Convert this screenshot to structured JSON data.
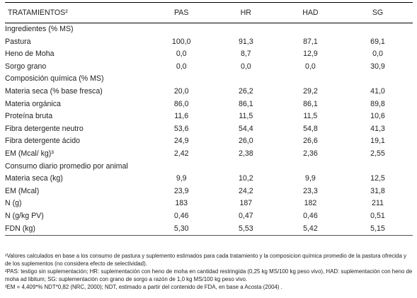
{
  "header": {
    "c0": "TRATAMIENTOS²",
    "c1": "PAS",
    "c2": "HR",
    "c3": "HAD",
    "c4": "SG"
  },
  "rows": [
    {
      "label": "Ingredientes (% MS)",
      "v": [
        "",
        "",
        "",
        ""
      ]
    },
    {
      "label": "Pastura",
      "v": [
        "100,0",
        "91,3",
        "87,1",
        "69,1"
      ]
    },
    {
      "label": "Heno de Moha",
      "v": [
        "0,0",
        "8,7",
        "12,9",
        "0,0"
      ]
    },
    {
      "label": "Sorgo grano",
      "v": [
        "0,0",
        "0,0",
        "0,0",
        "30,9"
      ]
    },
    {
      "label": "Composición química (% MS)",
      "v": [
        "",
        "",
        "",
        ""
      ]
    },
    {
      "label": "Materia seca (% base fresca)",
      "v": [
        "20,0",
        "26,2",
        "29,2",
        "41,0"
      ]
    },
    {
      "label": "Materia orgánica",
      "v": [
        "86,0",
        "86,1",
        "86,1",
        "89,8"
      ]
    },
    {
      "label": "Proteína bruta",
      "v": [
        "11,6",
        "11,5",
        "11,5",
        "10,6"
      ]
    },
    {
      "label": "Fibra detergente neutro",
      "v": [
        "53,6",
        "54,4",
        "54,8",
        "41,3"
      ]
    },
    {
      "label": "Fibra detergente ácido",
      "v": [
        "24,9",
        "26,0",
        "26,6",
        "19,1"
      ]
    },
    {
      "label": "EM (Mcal/ kg)³",
      "v": [
        "2,42",
        "2,38",
        "2,36",
        "2,55"
      ]
    },
    {
      "label": "Consumo diario promedio por animal",
      "v": [
        "",
        "",
        "",
        ""
      ]
    },
    {
      "label": "Materia seca (kg)",
      "v": [
        "9,9",
        "10,2",
        "9,9",
        "12,5"
      ]
    },
    {
      "label": "EM (Mcal)",
      "v": [
        "23,9",
        "24,2",
        "23,3",
        "31,8"
      ]
    },
    {
      "label": "N (g)",
      "v": [
        "183",
        "187",
        "182",
        "211"
      ]
    },
    {
      "label": "N (g/kg PV)",
      "v": [
        "0,46",
        "0,47",
        "0,46",
        "0,51"
      ]
    },
    {
      "label": "FDN (kg)",
      "v": [
        "5,30",
        "5,53",
        "5,42",
        "5,15"
      ]
    }
  ],
  "notes": {
    "n1": "¹Valores calculados en base a los consumo de pastura y suplemento estimados para cada tratamiento y la composicion química promedio de la pastura ofrecida y de los suplementos (no considera efecto de selectividad).",
    "n2": "²PAS: testigo sin suplementación; HR: suplementación con heno de moha en cantidad restringida (0,25 kg MS/100 kg peso vivo), HAD: suplementación con heno de moha ad libitum; SG: suplementación con grano de sorgo a razón de 1,0 kg MS/100 kg peso vivo.",
    "n3": "³EM = 4,409*% NDT*0,82 (NRC, 2000); NDT, estimado a partir del contenido de FDA, en base a Acosta (2004) ."
  }
}
